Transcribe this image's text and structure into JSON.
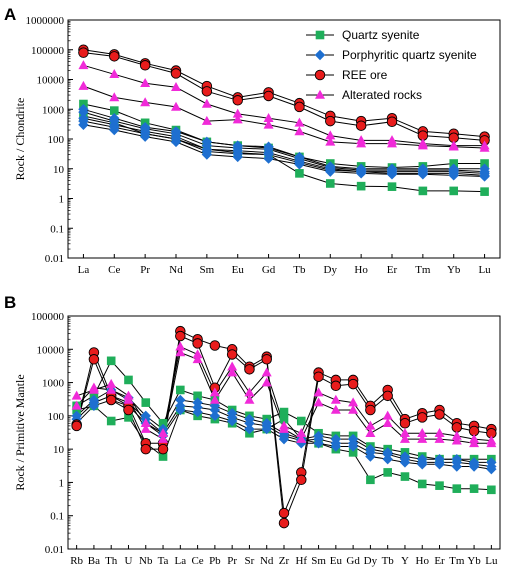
{
  "chart_data": [
    {
      "type": "line",
      "panel_label": "A",
      "ylabel": "Rock / Chondrite",
      "yscale": "log",
      "ylim": [
        0.01,
        1000000
      ],
      "y_ticks": [
        "0.01",
        "0.1",
        "1",
        "10",
        "100",
        "1000",
        "10000",
        "100000",
        "1000000"
      ],
      "categories": [
        "La",
        "Ce",
        "Pr",
        "Nd",
        "Sm",
        "Eu",
        "Gd",
        "Tb",
        "Dy",
        "Ho",
        "Er",
        "Tm",
        "Yb",
        "Lu"
      ],
      "legend_position": "top-right",
      "groups": [
        {
          "name": "Quartz syenite",
          "color": "#1fae5a",
          "marker": "square",
          "series": [
            [
              1500,
              900,
              350,
              200,
              80,
              60,
              50,
              25,
              15,
              12,
              11,
              12,
              15,
              15
            ],
            [
              600,
              350,
              150,
              100,
              45,
              35,
              30,
              7,
              3.2,
              2.6,
              2.5,
              1.8,
              1.8,
              1.7
            ]
          ]
        },
        {
          "name": "Porphyritic quartz syenite",
          "color": "#1e6fd0",
          "marker": "diamond",
          "series": [
            [
              1000,
              500,
              250,
              180,
              80,
              60,
              55,
              25,
              12,
              10,
              10,
              10,
              10,
              10
            ],
            [
              800,
              400,
              220,
              150,
              60,
              50,
              45,
              22,
              11,
              9,
              9,
              9,
              9,
              8
            ],
            [
              500,
              300,
              180,
              120,
              45,
              40,
              35,
              18,
              10,
              8,
              8,
              8,
              8,
              7
            ],
            [
              400,
              250,
              150,
              100,
              38,
              32,
              30,
              16,
              9,
              8,
              7,
              7,
              7,
              6
            ],
            [
              300,
              200,
              120,
              80,
              30,
              25,
              22,
              14,
              8,
              7,
              6.5,
              6.5,
              6,
              5.5
            ]
          ]
        },
        {
          "name": "REE ore",
          "color": "#e81c1c",
          "marker": "circle",
          "series": [
            [
              100000,
              70000,
              35000,
              20000,
              6000,
              2500,
              3700,
              1600,
              600,
              400,
              500,
              180,
              150,
              120
            ],
            [
              80000,
              60000,
              30000,
              16000,
              4000,
              2000,
              2800,
              1200,
              400,
              280,
              380,
              130,
              110,
              90
            ]
          ]
        },
        {
          "name": "Alterated rocks",
          "color": "#f02ad8",
          "marker": "triangle",
          "series": [
            [
              30000,
              15000,
              7500,
              5500,
              1500,
              700,
              500,
              350,
              130,
              90,
              90,
              70,
              60,
              60
            ],
            [
              6000,
              2500,
              1700,
              1200,
              400,
              450,
              300,
              180,
              80,
              70,
              70,
              60,
              55,
              50
            ]
          ]
        }
      ]
    },
    {
      "type": "line",
      "panel_label": "B",
      "ylabel": "Rock / Primitive Mantle",
      "yscale": "log",
      "ylim": [
        0.01,
        100000
      ],
      "y_ticks": [
        "0.01",
        "0.1",
        "1",
        "10",
        "100",
        "1000",
        "10000",
        "100000"
      ],
      "categories": [
        "Rb",
        "Ba",
        "Th",
        "U",
        "Nb",
        "Ta",
        "La",
        "Ce",
        "Pb",
        "Pr",
        "Sr",
        "Nd",
        "Zr",
        "Hf",
        "Sm",
        "Eu",
        "Gd",
        "Dy",
        "Tb",
        "Y",
        "Ho",
        "Er",
        "Tm",
        "Yb",
        "Lu"
      ],
      "groups": [
        {
          "name": "Quartz syenite",
          "color": "#1fae5a",
          "marker": "square",
          "series": [
            [
              200,
              400,
              4500,
              1200,
              250,
              60,
              600,
              400,
              300,
              150,
              100,
              80,
              130,
              70,
              30,
              25,
              25,
              12,
              10,
              8,
              6,
              5,
              5,
              5,
              5
            ],
            [
              150,
              200,
              70,
              90,
              15,
              6,
              150,
              100,
              80,
              60,
              30,
              40,
              80,
              20,
              15,
              10,
              8,
              1.2,
              2,
              1.5,
              0.9,
              0.8,
              0.65,
              0.65,
              0.6
            ]
          ]
        },
        {
          "name": "Porphyritic quartz syenite",
          "color": "#1e6fd0",
          "marker": "diamond",
          "series": [
            [
              100,
              300,
              600,
              350,
              100,
              40,
              300,
              250,
              200,
              120,
              80,
              60,
              30,
              20,
              25,
              20,
              20,
              10,
              8,
              6,
              5,
              5,
              5,
              4,
              4
            ],
            [
              80,
              250,
              400,
              250,
              80,
              30,
              200,
              180,
              150,
              90,
              60,
              50,
              25,
              18,
              20,
              15,
              15,
              8,
              7,
              5,
              4,
              4,
              4,
              3.5,
              3
            ],
            [
              60,
              200,
              300,
              200,
              60,
              25,
              150,
              130,
              100,
              70,
              40,
              40,
              20,
              15,
              15,
              12,
              12,
              6,
              5,
              4,
              3.5,
              3.5,
              3,
              3,
              2.5
            ]
          ]
        },
        {
          "name": "REE ore",
          "color": "#e81c1c",
          "marker": "circle",
          "series": [
            [
              55,
              8000,
              400,
              200,
              15,
              15,
              35000,
              20000,
              13000,
              10000,
              3000,
              6000,
              0.12,
              2,
              2000,
              1200,
              1200,
              200,
              600,
              80,
              120,
              150,
              60,
              50,
              40
            ],
            [
              50,
              5000,
              300,
              150,
              10,
              10,
              25000,
              15000,
              700,
              7000,
              2500,
              5000,
              0.06,
              1.2,
              1500,
              800,
              900,
              150,
              400,
              60,
              90,
              110,
              45,
              35,
              30
            ]
          ]
        },
        {
          "name": "Alterated rocks",
          "color": "#f02ad8",
          "marker": "triangle",
          "series": [
            [
              400,
              600,
              900,
              400,
              60,
              30,
              12000,
              7000,
              500,
              3000,
              500,
              2000,
              50,
              30,
              500,
              300,
              250,
              50,
              100,
              30,
              30,
              30,
              25,
              20,
              18
            ],
            [
              200,
              700,
              600,
              300,
              40,
              20,
              8000,
              5000,
              300,
              2000,
              300,
              1000,
              40,
              20,
              250,
              150,
              150,
              30,
              60,
              20,
              20,
              20,
              18,
              15,
              15
            ]
          ]
        }
      ]
    }
  ]
}
